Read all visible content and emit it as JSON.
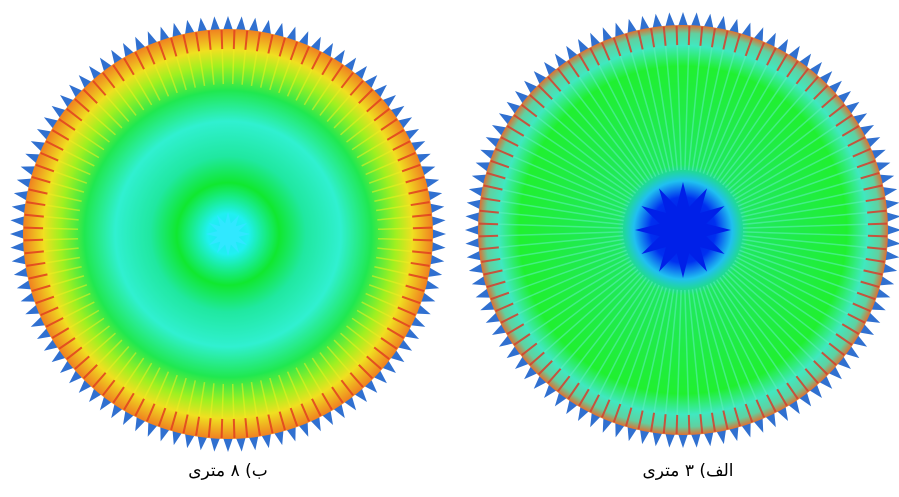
{
  "panels": [
    {
      "caption": "ب) ۸ متری"
    },
    {
      "caption": "الف) ۳ متری"
    }
  ]
}
